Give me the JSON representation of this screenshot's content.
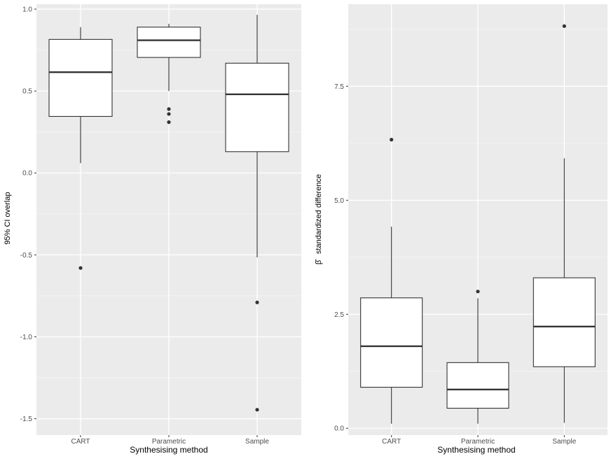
{
  "chart_data": [
    {
      "type": "boxplot",
      "xlabel": "Synthesising method",
      "ylabel": "95% CI overlap",
      "ylim": [
        -1.6,
        1.03
      ],
      "yticks": [
        1.0,
        0.5,
        0.0,
        -0.5,
        -1.0,
        -1.5
      ],
      "ytick_labels": [
        "1.0",
        "0.5",
        "0.0",
        "-0.5",
        "-1.0",
        "-1.5"
      ],
      "categories": [
        "CART",
        "Parametric",
        "Sample"
      ],
      "boxes": [
        {
          "name": "CART",
          "q1": 0.345,
          "median": 0.615,
          "q3": 0.815,
          "whisker_low": 0.06,
          "whisker_high": 0.89,
          "outliers": [
            -0.58
          ]
        },
        {
          "name": "Parametric",
          "q1": 0.705,
          "median": 0.81,
          "q3": 0.89,
          "whisker_low": 0.5,
          "whisker_high": 0.91,
          "outliers": [
            0.39,
            0.36,
            0.31
          ]
        },
        {
          "name": "Sample",
          "q1": 0.13,
          "median": 0.48,
          "q3": 0.67,
          "whisker_low": -0.515,
          "whisker_high": 0.965,
          "outliers": [
            -0.79,
            -1.445
          ]
        }
      ]
    },
    {
      "type": "boxplot",
      "xlabel": "Synthesising method",
      "ylabel_symbol": "β̂",
      "ylabel": "standardized difference",
      "ylim": [
        -0.15,
        9.3
      ],
      "yticks": [
        0.0,
        2.5,
        5.0,
        7.5
      ],
      "ytick_labels": [
        "0.0",
        "2.5",
        "5.0",
        "7.5"
      ],
      "categories": [
        "CART",
        "Parametric",
        "Sample"
      ],
      "boxes": [
        {
          "name": "CART",
          "q1": 0.9,
          "median": 1.8,
          "q3": 2.86,
          "whisker_low": 0.1,
          "whisker_high": 4.42,
          "outliers": [
            6.33
          ]
        },
        {
          "name": "Parametric",
          "q1": 0.44,
          "median": 0.85,
          "q3": 1.44,
          "whisker_low": 0.1,
          "whisker_high": 2.85,
          "outliers": [
            3.0
          ]
        },
        {
          "name": "Sample",
          "q1": 1.35,
          "median": 2.23,
          "q3": 3.3,
          "whisker_low": 0.12,
          "whisker_high": 5.92,
          "outliers": [
            8.82
          ]
        }
      ]
    }
  ]
}
